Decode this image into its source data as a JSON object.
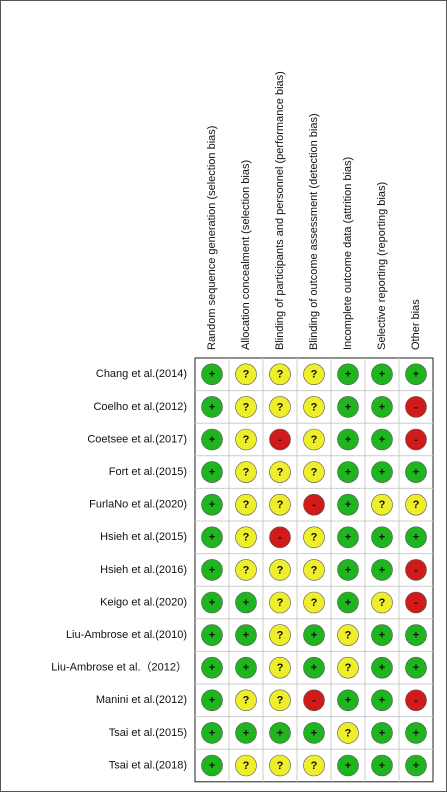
{
  "columns": [
    "Random sequence generation (selection bias)",
    "Allocation concealment (selection bias)",
    "Blinding of participants and personnel (performance bias)",
    "Blinding of outcome assessment (detection bias)",
    "Incomplete outcome data (attrition bias)",
    "Selective reporting (reporting bias)",
    "Other bias"
  ],
  "colors": {
    "+": "#1fb51f",
    "?": "#eeee2a",
    "-": "#d11a1a"
  },
  "rows": [
    {
      "label": "Chang et al.(2014)",
      "cells": [
        "+",
        "?",
        "?",
        "?",
        "+",
        "+",
        "+"
      ]
    },
    {
      "label": "Coelho et al.(2012)",
      "cells": [
        "+",
        "?",
        "?",
        "?",
        "+",
        "+",
        "-"
      ]
    },
    {
      "label": "Coetsee et al.(2017)",
      "cells": [
        "+",
        "?",
        "-",
        "?",
        "+",
        "+",
        "-"
      ]
    },
    {
      "label": "Fort et al.(2015)",
      "cells": [
        "+",
        "?",
        "?",
        "?",
        "+",
        "+",
        "+"
      ]
    },
    {
      "label": "FurlaNo et al.(2020)",
      "cells": [
        "+",
        "?",
        "?",
        "-",
        "+",
        "?",
        "?"
      ]
    },
    {
      "label": "Hsieh et al.(2015)",
      "cells": [
        "+",
        "?",
        "-",
        "?",
        "+",
        "+",
        "+"
      ]
    },
    {
      "label": "Hsieh et al.(2016)",
      "cells": [
        "+",
        "?",
        "?",
        "?",
        "+",
        "+",
        "-"
      ]
    },
    {
      "label": "Keigo et al.(2020)",
      "cells": [
        "+",
        "+",
        "?",
        "?",
        "+",
        "?",
        "-"
      ]
    },
    {
      "label": "Liu-Ambrose et al.(2010)",
      "cells": [
        "+",
        "+",
        "?",
        "+",
        "?",
        "+",
        "+"
      ]
    },
    {
      "label": "Liu-Ambrose et al.（2012）",
      "cells": [
        "+",
        "+",
        "?",
        "+",
        "?",
        "+",
        "+"
      ]
    },
    {
      "label": "Manini et al.(2012)",
      "cells": [
        "+",
        "?",
        "?",
        "-",
        "+",
        "+",
        "-"
      ]
    },
    {
      "label": "Tsai et al.(2015)",
      "cells": [
        "+",
        "+",
        "+",
        "+",
        "?",
        "+",
        "+"
      ]
    },
    {
      "label": "Tsai et al.(2018)",
      "cells": [
        "+",
        "?",
        "?",
        "?",
        "+",
        "+",
        "+"
      ]
    }
  ]
}
